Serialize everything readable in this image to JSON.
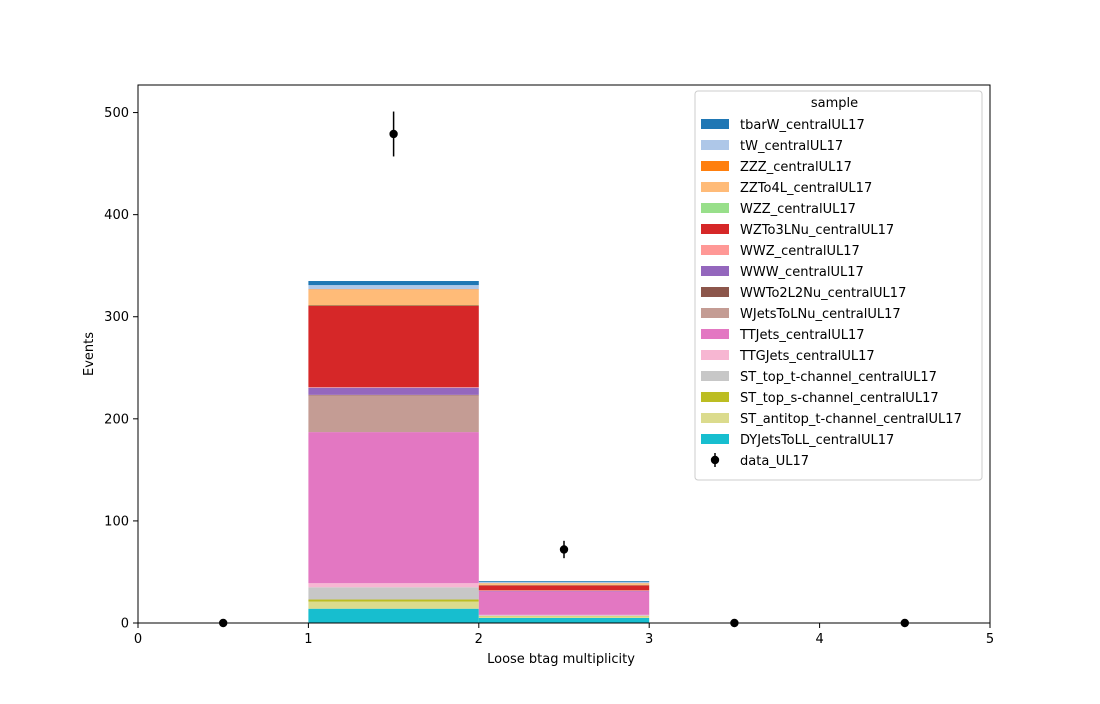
{
  "chart_data": {
    "type": "bar",
    "stacked": true,
    "title": "",
    "xlabel": "Loose btag multiplicity",
    "ylabel": "Events",
    "xlim": [
      0,
      5
    ],
    "ylim": [
      0,
      527
    ],
    "grid": false,
    "bin_edges": [
      0,
      1,
      2,
      3,
      4,
      5
    ],
    "x_ticks": [
      "0",
      "1",
      "2",
      "3",
      "4",
      "5"
    ],
    "y_ticks": [
      "0",
      "100",
      "200",
      "300",
      "400",
      "500"
    ],
    "legend": {
      "title": "sample",
      "placement": "top-right"
    },
    "series": [
      {
        "name": "DYJetsToLL_centralUL17",
        "color": "#17becf",
        "values": [
          0,
          14,
          5,
          0,
          0
        ]
      },
      {
        "name": "ST_antitop_t-channel_centralUL17",
        "color": "#dbdb8d",
        "values": [
          0,
          7,
          1.5,
          0,
          0
        ]
      },
      {
        "name": "ST_top_s-channel_centralUL17",
        "color": "#bcbd22",
        "values": [
          0,
          2,
          0.3,
          0,
          0
        ]
      },
      {
        "name": "ST_top_t-channel_centralUL17",
        "color": "#c7c7c7",
        "values": [
          0,
          12,
          0.7,
          0,
          0
        ]
      },
      {
        "name": "TTGJets_centralUL17",
        "color": "#f7b6d2",
        "values": [
          0,
          4,
          0.5,
          0,
          0
        ]
      },
      {
        "name": "TTJets_centralUL17",
        "color": "#e377c2",
        "values": [
          0,
          148,
          23,
          0,
          0
        ]
      },
      {
        "name": "WJetsToLNu_centralUL17",
        "color": "#c49c94",
        "values": [
          0,
          36,
          0,
          0,
          0
        ]
      },
      {
        "name": "WWTo2L2Nu_centralUL17",
        "color": "#8c564b",
        "values": [
          0,
          0.5,
          0,
          0,
          0
        ]
      },
      {
        "name": "WWW_centralUL17",
        "color": "#9467bd",
        "values": [
          0,
          7,
          0.5,
          0,
          0
        ]
      },
      {
        "name": "WWZ_centralUL17",
        "color": "#ff9896",
        "values": [
          0,
          0.5,
          0.5,
          0,
          0
        ]
      },
      {
        "name": "WZTo3LNu_centralUL17",
        "color": "#d62728",
        "values": [
          0,
          80,
          5,
          0,
          0
        ]
      },
      {
        "name": "WZZ_centralUL17",
        "color": "#98df8a",
        "values": [
          0,
          0.5,
          0.3,
          0,
          0
        ]
      },
      {
        "name": "ZZTo4L_centralUL17",
        "color": "#ffbb78",
        "values": [
          0,
          15,
          1.5,
          0,
          0
        ]
      },
      {
        "name": "ZZZ_centralUL17",
        "color": "#ff7f0e",
        "values": [
          0,
          0.5,
          0.2,
          0,
          0
        ]
      },
      {
        "name": "tW_centralUL17",
        "color": "#aec7e8",
        "values": [
          0,
          4,
          1.2,
          0,
          0
        ]
      },
      {
        "name": "tbarW_centralUL17",
        "color": "#1f77b4",
        "values": [
          0,
          4,
          0.8,
          0,
          0
        ]
      }
    ],
    "data_series": {
      "name": "data_UL17",
      "color": "#000000",
      "x": [
        0.5,
        1.5,
        2.5,
        3.5,
        4.5
      ],
      "y": [
        0,
        479,
        72,
        0,
        0
      ],
      "yerr": [
        0,
        22,
        8.5,
        0,
        0
      ]
    }
  }
}
